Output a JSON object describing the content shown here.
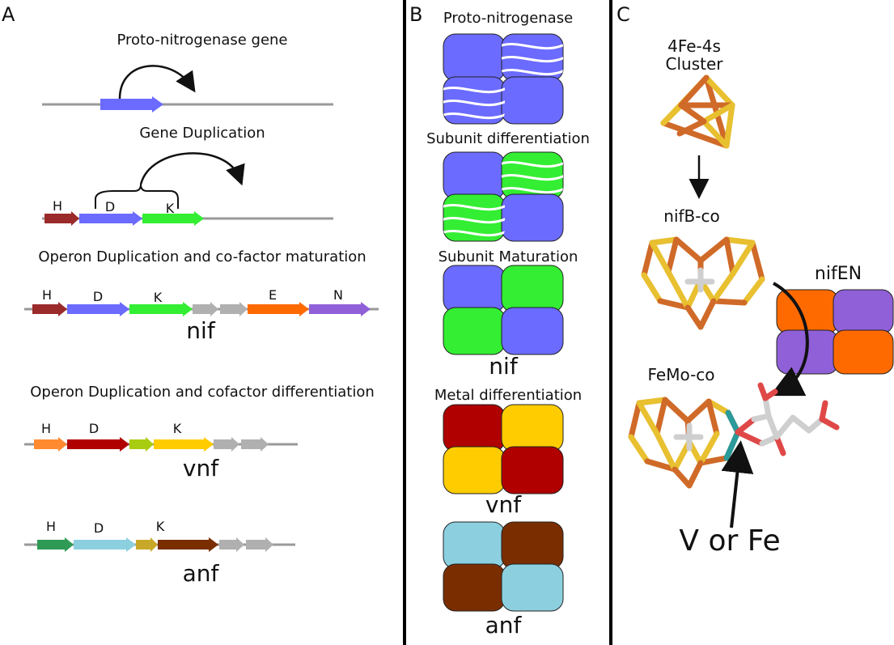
{
  "panels": {
    "a": {
      "letter": "A",
      "steps": [
        {
          "caption": "Proto-nitrogenase gene"
        },
        {
          "caption": "Gene Duplication",
          "labels": [
            "H",
            "D",
            "K"
          ]
        },
        {
          "caption": "Operon Duplication and co-factor maturation",
          "labels": [
            "H",
            "D",
            "K",
            "E",
            "N"
          ],
          "operon": "nif"
        },
        {
          "caption": "Operon Duplication and cofactor differentiation",
          "labels": [
            "H",
            "D",
            "K"
          ],
          "operon": "vnf"
        },
        {
          "labels": [
            "H",
            "D",
            "K"
          ],
          "operon": "anf"
        }
      ]
    },
    "b": {
      "letter": "B",
      "stages": [
        {
          "caption": "Proto-nitrogenase"
        },
        {
          "caption": "Subunit differentiation"
        },
        {
          "caption": "Subunit Maturation",
          "operon": "nif"
        },
        {
          "caption": "Metal differentiation",
          "operon": "vnf"
        },
        {
          "operon": "anf"
        }
      ]
    },
    "c": {
      "letter": "C",
      "cluster_label": "4Fe-4s",
      "cluster_label_2": "Cluster",
      "nifb_label": "nifB-co",
      "nifen_label": "nifEN",
      "femo_label": "FeMo-co",
      "metal_label": "V or Fe"
    }
  },
  "colors": {
    "proto": "#6b6bff",
    "nif_h": "#9b2a2a",
    "nif_d": "#6b6bff",
    "nif_k": "#33ee33",
    "gray": "#b0b0b0",
    "nif_e": "#ff6a00",
    "nif_n": "#9060d8",
    "vnf_h": "#ff8a30",
    "vnf_d": "#b00000",
    "vnf_mid": "#a8cc10",
    "vnf_k": "#ffcc00",
    "anf_h": "#2e9a55",
    "anf_d": "#8cd0e0",
    "anf_mid": "#c8a828",
    "anf_k": "#7a2e00",
    "iron": "#d06a28",
    "sulfur": "#e8c030",
    "carbon": "#cfcfcf",
    "metal": "#2a9a9a",
    "oxygen": "#e04848"
  }
}
